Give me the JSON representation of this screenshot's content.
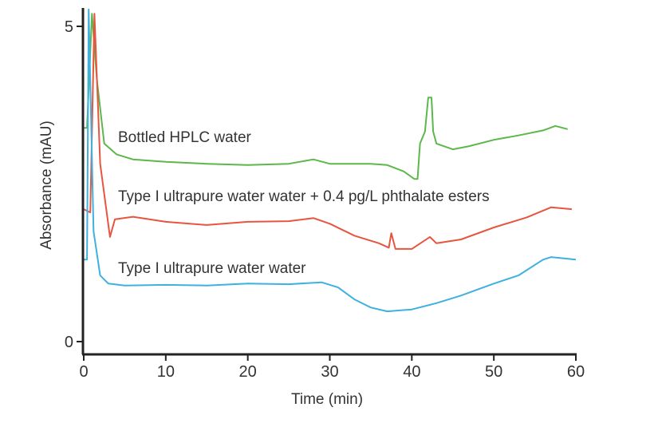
{
  "chart_data": {
    "type": "line",
    "title": "",
    "xlabel": "Time (min)",
    "ylabel": "Absorbance (mAU)",
    "xlim": [
      0,
      60
    ],
    "ylim": [
      -0.2,
      5.3
    ],
    "xticks": [
      "0",
      "10",
      "20",
      "30",
      "40",
      "50",
      "60"
    ],
    "yticks": [
      "0",
      "5"
    ],
    "grid": false,
    "legend": "none (inline labels)",
    "series": [
      {
        "name": "Bottled HPLC water",
        "color": "#5cb84a",
        "x": [
          0,
          0.4,
          1.0,
          1.6,
          2.5,
          4,
          6,
          10,
          15,
          20,
          25,
          28,
          30,
          35,
          37,
          39,
          40.3,
          40.7,
          41,
          41.6,
          42,
          42.4,
          42.6,
          43,
          45,
          47,
          50,
          53,
          56,
          57.5,
          59
        ],
        "y": [
          3.39,
          3.39,
          5.2,
          4.15,
          3.14,
          2.97,
          2.89,
          2.85,
          2.82,
          2.8,
          2.82,
          2.89,
          2.82,
          2.82,
          2.8,
          2.7,
          2.58,
          2.58,
          3.14,
          3.33,
          3.87,
          3.87,
          3.33,
          3.14,
          3.05,
          3.1,
          3.2,
          3.27,
          3.35,
          3.42,
          3.37
        ]
      },
      {
        "name": "Type I ultrapure water water + 0.4 pg/L phthalate esters",
        "color": "#e8553f",
        "x": [
          0,
          0.8,
          1.3,
          2,
          3.2,
          3.8,
          6,
          10,
          15,
          20,
          25,
          28,
          30,
          33,
          36,
          37.2,
          37.5,
          38,
          40,
          42.2,
          43,
          46,
          50,
          54,
          57,
          59.5
        ],
        "y": [
          2.1,
          2.05,
          5.2,
          2.82,
          1.66,
          1.94,
          1.98,
          1.9,
          1.85,
          1.9,
          1.91,
          1.96,
          1.87,
          1.68,
          1.56,
          1.49,
          1.72,
          1.47,
          1.47,
          1.66,
          1.56,
          1.62,
          1.81,
          1.97,
          2.13,
          2.1
        ]
      },
      {
        "name": "Type I ultrapure water water",
        "color": "#3fb0e0",
        "x": [
          0,
          0.4,
          0.6,
          1.2,
          2,
          3,
          5,
          10,
          15,
          20,
          25,
          29,
          31,
          33,
          35,
          37,
          40,
          43,
          46,
          50,
          53,
          56,
          57,
          60
        ],
        "y": [
          1.3,
          1.3,
          5.27,
          1.75,
          1.05,
          0.92,
          0.89,
          0.9,
          0.89,
          0.92,
          0.91,
          0.94,
          0.86,
          0.67,
          0.54,
          0.48,
          0.51,
          0.61,
          0.73,
          0.92,
          1.05,
          1.3,
          1.34,
          1.3
        ]
      }
    ]
  }
}
